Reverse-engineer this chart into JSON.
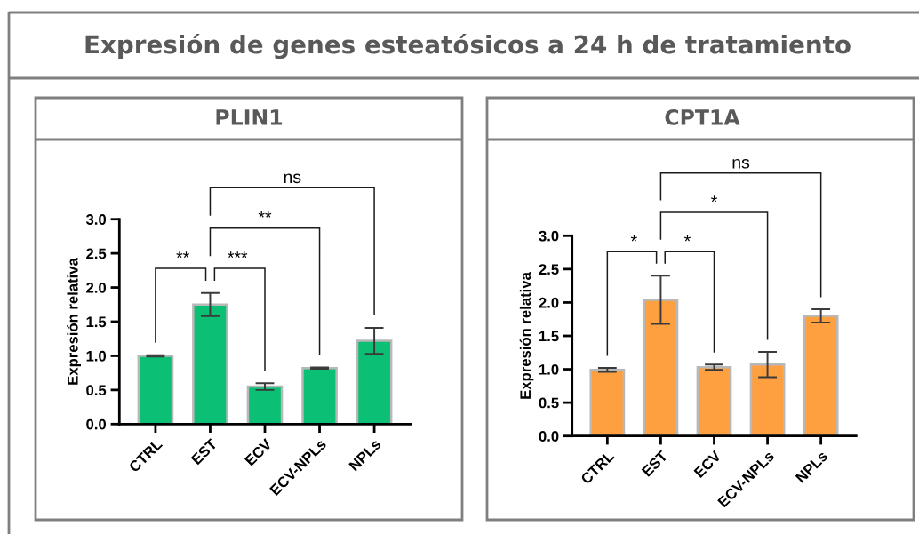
{
  "chart_data": [
    {
      "type": "other",
      "title": "Expresión de genes esteatósicos a 24 h de tratamiento"
    },
    {
      "type": "bar",
      "title": "PLIN1",
      "ylabel": "Expresión relativa",
      "categories": [
        "CTRL",
        "EST",
        "ECV",
        "ECV-NPLs",
        "NPLs"
      ],
      "values": [
        1.0,
        1.75,
        0.55,
        0.82,
        1.22
      ],
      "errors": [
        0.01,
        0.17,
        0.05,
        0.01,
        0.19
      ],
      "color": "#0bbf75",
      "ylim": [
        0,
        3
      ],
      "yticks": [
        {
          "value": 0,
          "label": "0.0"
        },
        {
          "value": 0.5,
          "label": "0.5"
        },
        {
          "value": 1,
          "label": "1.0"
        },
        {
          "value": 1.5,
          "label": "1.5"
        },
        {
          "value": 2,
          "label": "2.0"
        },
        {
          "value": 2.5,
          "label": "2.5"
        },
        {
          "value": 3,
          "label": "3.0"
        }
      ],
      "annotations": [
        "**",
        "***",
        "**",
        "ns"
      ]
    },
    {
      "type": "bar",
      "title": "CPT1A",
      "ylabel": "Expresión relativa",
      "categories": [
        "CTRL",
        "EST",
        "ECV",
        "ECV-NPLs",
        "NPLs"
      ],
      "values": [
        0.99,
        2.04,
        1.03,
        1.07,
        1.8
      ],
      "errors": [
        0.03,
        0.36,
        0.04,
        0.19,
        0.1
      ],
      "color": "#ffa040",
      "ylim": [
        0,
        3
      ],
      "yticks": [
        {
          "value": 0,
          "label": "0.0"
        },
        {
          "value": 0.5,
          "label": "0.5"
        },
        {
          "value": 1,
          "label": "1.0"
        },
        {
          "value": 1.5,
          "label": "1.5"
        },
        {
          "value": 2,
          "label": "2.0"
        },
        {
          "value": 2.5,
          "label": "2.5"
        },
        {
          "value": 3,
          "label": "3.0"
        }
      ],
      "annotations": [
        "*",
        "*",
        "*",
        "ns"
      ]
    }
  ]
}
